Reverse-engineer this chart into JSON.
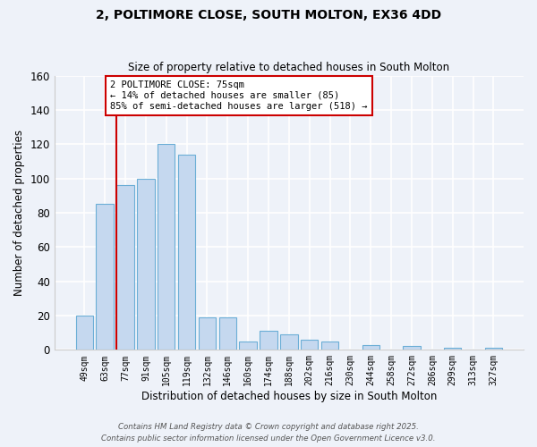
{
  "title": "2, POLTIMORE CLOSE, SOUTH MOLTON, EX36 4DD",
  "subtitle": "Size of property relative to detached houses in South Molton",
  "xlabel": "Distribution of detached houses by size in South Molton",
  "ylabel": "Number of detached properties",
  "bar_labels": [
    "49sqm",
    "63sqm",
    "77sqm",
    "91sqm",
    "105sqm",
    "119sqm",
    "132sqm",
    "146sqm",
    "160sqm",
    "174sqm",
    "188sqm",
    "202sqm",
    "216sqm",
    "230sqm",
    "244sqm",
    "258sqm",
    "272sqm",
    "286sqm",
    "299sqm",
    "313sqm",
    "327sqm"
  ],
  "bar_values": [
    20,
    85,
    96,
    100,
    120,
    114,
    19,
    19,
    5,
    11,
    9,
    6,
    5,
    0,
    3,
    0,
    2,
    0,
    1,
    0,
    1
  ],
  "bar_color": "#c5d8ef",
  "bar_edge_color": "#6baed6",
  "vline_color": "#cc0000",
  "annotation_text": "2 POLTIMORE CLOSE: 75sqm\n← 14% of detached houses are smaller (85)\n85% of semi-detached houses are larger (518) →",
  "annotation_box_color": "#ffffff",
  "annotation_box_edge": "#cc0000",
  "ylim": [
    0,
    160
  ],
  "yticks": [
    0,
    20,
    40,
    60,
    80,
    100,
    120,
    140,
    160
  ],
  "footer_line1": "Contains HM Land Registry data © Crown copyright and database right 2025.",
  "footer_line2": "Contains public sector information licensed under the Open Government Licence v3.0.",
  "background_color": "#eef2f9",
  "plot_bg_color": "#eef2f9",
  "grid_color": "#ffffff"
}
